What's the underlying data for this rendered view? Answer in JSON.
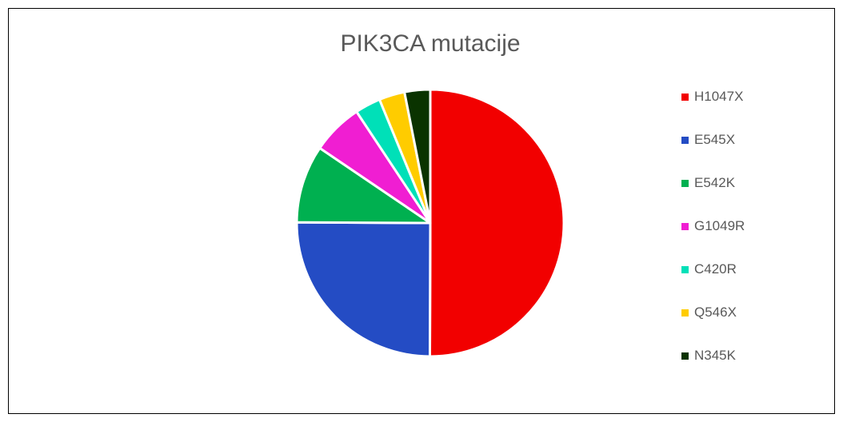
{
  "chart_data": {
    "type": "pie",
    "title": "PIK3CA mutacije",
    "legend_position": "right",
    "categories": [
      "H1047X",
      "E545X",
      "E542K",
      "G1049R",
      "C420R",
      "Q546X",
      "N345K"
    ],
    "values": [
      50,
      25,
      9.4,
      6.2,
      3.1,
      3.1,
      3.1
    ],
    "colors": [
      "#f20000",
      "#244cc4",
      "#00b050",
      "#f01ed2",
      "#00e0b8",
      "#ffcc00",
      "#0a3300"
    ]
  }
}
